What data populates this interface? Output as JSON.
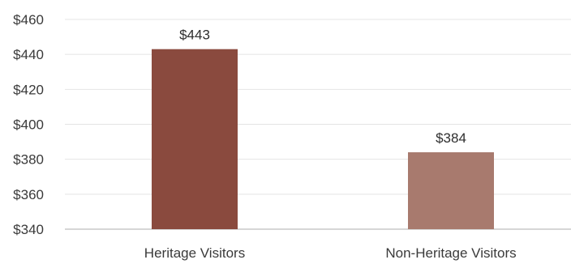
{
  "chart_data": {
    "type": "bar",
    "title": "",
    "xlabel": "",
    "ylabel": "",
    "categories": [
      "Heritage Visitors",
      "Non-Heritage Visitors"
    ],
    "values": [
      443,
      384
    ],
    "data_labels": [
      "$443",
      "$384"
    ],
    "bar_colors": [
      "#8a4a3e",
      "#a87a6e"
    ],
    "ylim": [
      340,
      460
    ],
    "y_ticks": [
      340,
      360,
      380,
      400,
      420,
      440,
      460
    ],
    "y_tick_labels": [
      "$340",
      "$360",
      "$380",
      "$400",
      "$420",
      "$440",
      "$460"
    ],
    "grid": true,
    "legend": "none"
  }
}
